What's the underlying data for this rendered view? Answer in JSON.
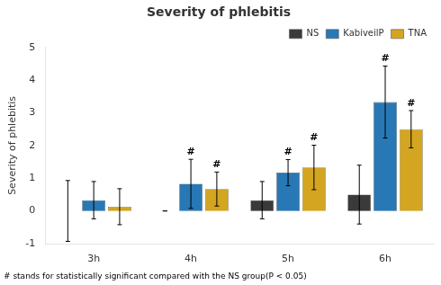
{
  "chart_data": {
    "type": "bar",
    "title": "Severity of phlebitis",
    "ylabel": "Severity of phlebitis",
    "footnote": "# stands for statistically significant compared with the NS group(P < 0.05)",
    "categories": [
      "3h",
      "4h",
      "5h",
      "6h"
    ],
    "series": [
      {
        "name": "NS",
        "color": "#3a3a3a",
        "values": [
          0.0,
          0.0,
          0.33,
          0.5
        ],
        "errors": [
          0.93,
          0.0,
          0.57,
          0.9
        ],
        "significance": [
          false,
          false,
          false,
          false
        ]
      },
      {
        "name": "KabiveilP",
        "color": "#2878b5",
        "values": [
          0.33,
          0.83,
          1.17,
          3.33
        ],
        "errors": [
          0.57,
          0.75,
          0.4,
          1.1
        ],
        "significance": [
          false,
          true,
          true,
          true
        ]
      },
      {
        "name": "TNA",
        "color": "#d4a520",
        "values": [
          0.13,
          0.67,
          1.33,
          2.5
        ],
        "errors": [
          0.55,
          0.52,
          0.68,
          0.57
        ],
        "significance": [
          false,
          true,
          true,
          true
        ]
      }
    ],
    "significance_marker": "#",
    "ylim": [
      -1,
      5
    ],
    "yticks": [
      -1,
      0,
      1,
      2,
      3,
      4,
      5
    ],
    "grid": false,
    "legend": "upper right"
  }
}
